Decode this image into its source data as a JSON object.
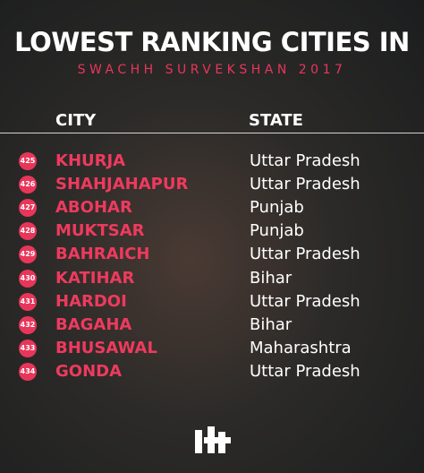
{
  "header": {
    "title": "LOWEST RANKING CITIES IN",
    "subtitle": "SWACHH SURVEKSHAN 2017"
  },
  "table": {
    "columns": [
      "CITY",
      "STATE"
    ],
    "rows": [
      [
        425,
        "KHURJA",
        "Uttar Pradesh"
      ],
      [
        426,
        "SHAHJAHAPUR",
        "Uttar Pradesh"
      ],
      [
        427,
        "ABOHAR",
        "Punjab"
      ],
      [
        428,
        "MUKTSAR",
        "Punjab"
      ],
      [
        429,
        "BAHRAICH",
        "Uttar Pradesh"
      ],
      [
        430,
        "KATIHAR",
        "Bihar"
      ],
      [
        431,
        "HARDOI",
        "Uttar Pradesh"
      ],
      [
        432,
        "BAGAHA",
        "Bihar"
      ],
      [
        433,
        "BHUSAWAL",
        "Maharashtra"
      ],
      [
        434,
        "GONDA",
        "Uttar Pradesh"
      ]
    ]
  }
}
